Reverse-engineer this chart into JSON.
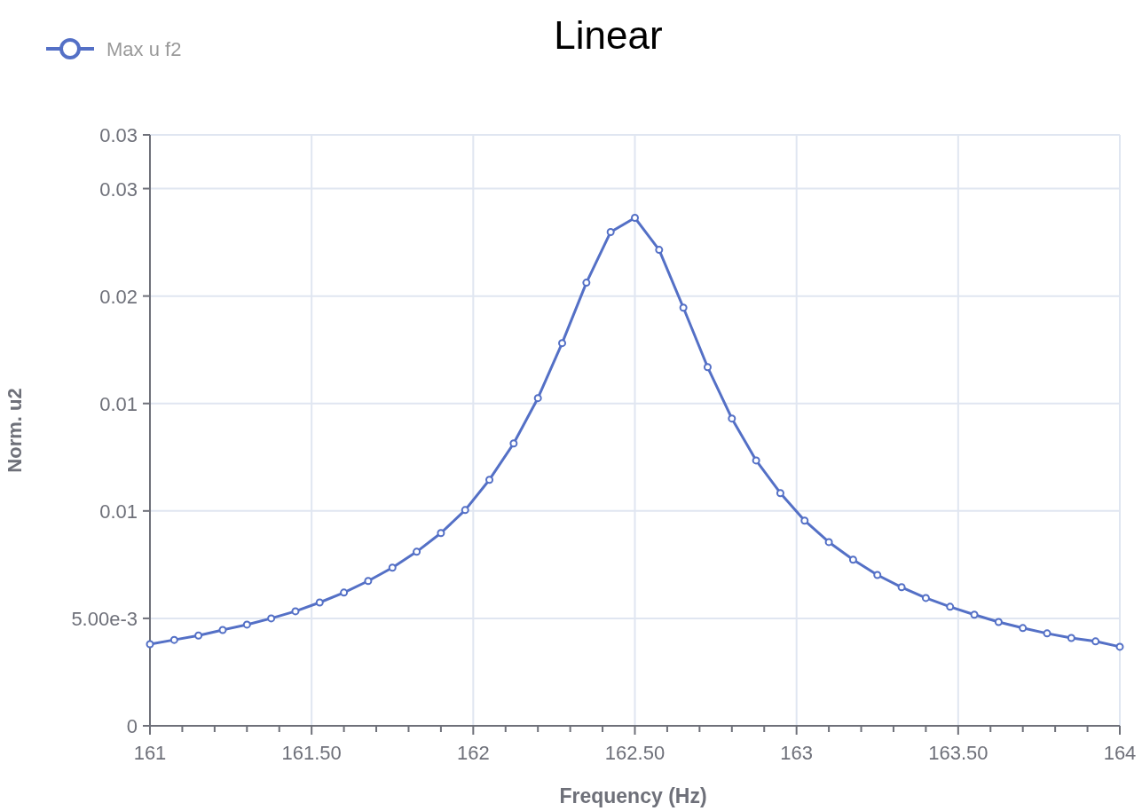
{
  "chart_data": {
    "type": "line",
    "title": "Linear",
    "xlabel": "Frequency (Hz)",
    "ylabel": "Norm. u2",
    "x": [
      161,
      161.075,
      161.15,
      161.225,
      161.3,
      161.375,
      161.45,
      161.525,
      161.6,
      161.675,
      161.75,
      161.825,
      161.9,
      161.975,
      162.05,
      162.125,
      162.2,
      162.275,
      162.35,
      162.425,
      162.5,
      162.575,
      162.65,
      162.725,
      162.8,
      162.875,
      162.95,
      163.025,
      163.1,
      163.175,
      163.25,
      163.325,
      163.4,
      163.475,
      163.55,
      163.625,
      163.7,
      163.775,
      163.85,
      163.925,
      164
    ],
    "series": [
      {
        "name": "Max u f2",
        "color": "#5470c6",
        "values": [
          0.0038,
          0.004,
          0.0042,
          0.00446,
          0.00471,
          0.005,
          0.00533,
          0.00574,
          0.0062,
          0.00674,
          0.00736,
          0.0081,
          0.00897,
          0.01004,
          0.01145,
          0.01314,
          0.01525,
          0.01781,
          0.02062,
          0.02298,
          0.02364,
          0.02215,
          0.01946,
          0.01669,
          0.0143,
          0.01235,
          0.01083,
          0.00955,
          0.00855,
          0.00773,
          0.00702,
          0.00645,
          0.00595,
          0.00554,
          0.00517,
          0.00483,
          0.00455,
          0.0043,
          0.00409,
          0.00393,
          0.00368
        ]
      }
    ],
    "xlim": [
      161,
      164
    ],
    "ylim": [
      0,
      0.0275
    ],
    "xticks": [
      161,
      {
        "value": 161.1,
        "label": null
      },
      {
        "value": 161.2,
        "label": null
      },
      {
        "value": 161.3,
        "label": null
      },
      {
        "value": 161.4,
        "label": null
      },
      {
        "value": 161.5,
        "label": "161.50"
      },
      {
        "value": 161.6,
        "label": null
      },
      {
        "value": 161.7,
        "label": null
      },
      {
        "value": 161.8,
        "label": null
      },
      {
        "value": 161.9,
        "label": null
      },
      162,
      {
        "value": 162.1,
        "label": null
      },
      {
        "value": 162.2,
        "label": null
      },
      {
        "value": 162.3,
        "label": null
      },
      {
        "value": 162.4,
        "label": null
      },
      {
        "value": 162.5,
        "label": "162.50"
      },
      {
        "value": 162.6,
        "label": null
      },
      {
        "value": 162.7,
        "label": null
      },
      {
        "value": 162.8,
        "label": null
      },
      {
        "value": 162.9,
        "label": null
      },
      163,
      {
        "value": 163.1,
        "label": null
      },
      {
        "value": 163.2,
        "label": null
      },
      {
        "value": 163.3,
        "label": null
      },
      {
        "value": 163.4,
        "label": null
      },
      {
        "value": 163.5,
        "label": "163.50"
      },
      {
        "value": 163.6,
        "label": null
      },
      {
        "value": 163.7,
        "label": null
      },
      {
        "value": 163.8,
        "label": null
      },
      {
        "value": 163.9,
        "label": null
      },
      164
    ],
    "yticks": [
      0,
      {
        "value": 0.005,
        "label": "5.00e-3"
      },
      {
        "value": 0.01,
        "label": "0.01"
      },
      {
        "value": 0.015,
        "label": "0.01"
      },
      {
        "value": 0.02,
        "label": "0.02"
      },
      {
        "value": 0.025,
        "label": "0.03"
      },
      {
        "value": 0.0275,
        "label": "0.03"
      }
    ],
    "grid": true,
    "legend": "top left",
    "marker": "circle",
    "line_style": "solid"
  }
}
